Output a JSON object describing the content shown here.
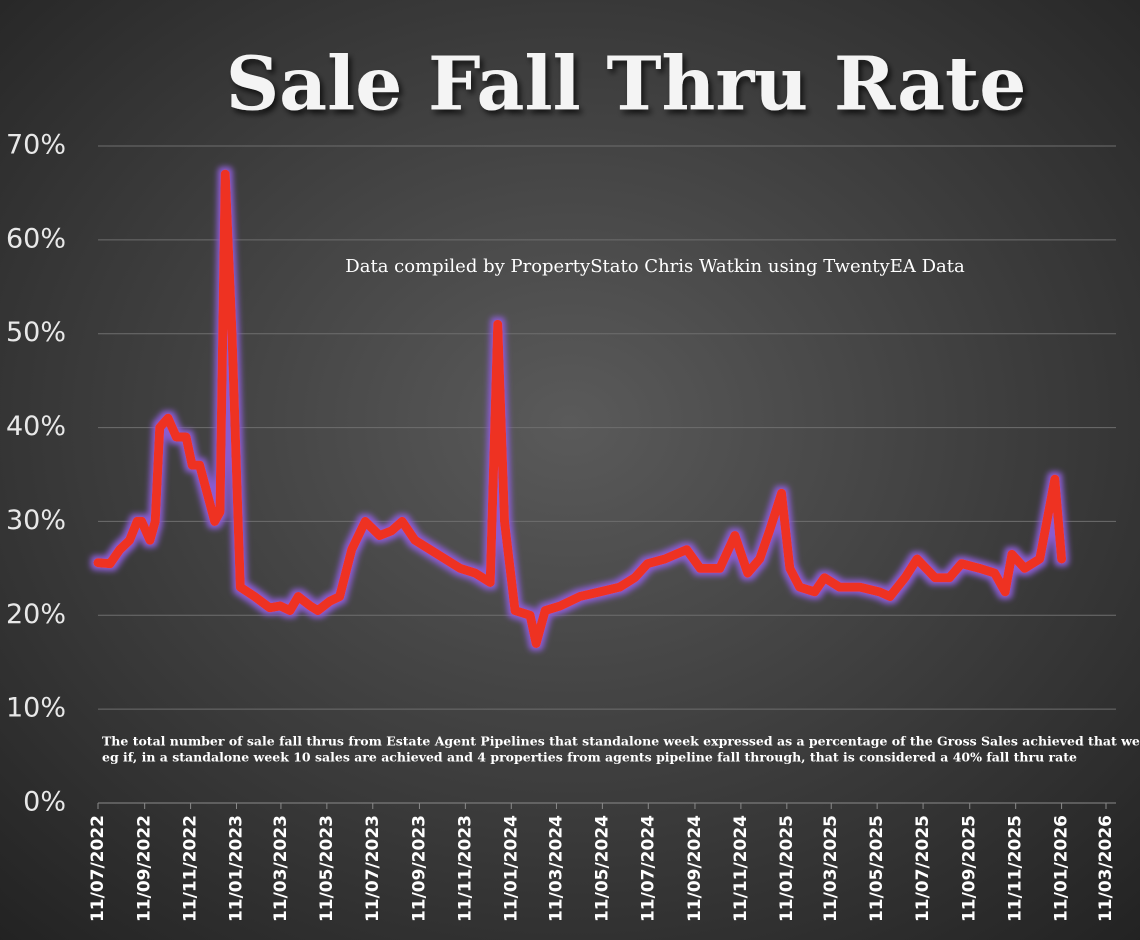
{
  "chart_data": {
    "type": "line",
    "title": "Sale Fall Thru Rate",
    "subtitle": "Data compiled by PropertyStato Chris Watkin using TwentyEA Data",
    "note": [
      "The total number of sale fall thrus from Estate Agent Pipelines that standalone week expressed as a percentage of the Gross Sales achieved that week.",
      " eg if, in a standalone week 10 sales are achieved and 4 properties from agents pipeline fall through, that is considered a 40%  fall thru rate"
    ],
    "x": [
      "2022-07-11",
      "2022-07-27",
      "2022-08-09",
      "2022-08-22",
      "2022-09-01",
      "2022-09-07",
      "2022-09-18",
      "2022-09-25",
      "2022-10-01",
      "2022-10-12",
      "2022-10-23",
      "2022-11-05",
      "2022-11-13",
      "2022-11-23",
      "2022-12-13",
      "2022-12-20",
      "2022-12-27",
      "2023-01-05",
      "2023-01-16",
      "2023-02-04",
      "2023-02-24",
      "2023-03-10",
      "2023-03-23",
      "2023-04-03",
      "2023-04-19",
      "2023-04-29",
      "2023-05-15",
      "2023-05-28",
      "2023-06-13",
      "2023-07-01",
      "2023-07-20",
      "2023-08-05",
      "2023-08-19",
      "2023-09-05",
      "2023-09-25",
      "2023-10-15",
      "2023-11-04",
      "2023-11-24",
      "2023-12-14",
      "2023-12-24",
      "2024-01-02",
      "2024-01-16",
      "2024-02-05",
      "2024-02-13",
      "2024-02-25",
      "2024-03-16",
      "2024-04-11",
      "2024-05-08",
      "2024-06-03",
      "2024-06-23",
      "2024-07-10",
      "2024-08-02",
      "2024-08-31",
      "2024-09-18",
      "2024-10-14",
      "2024-11-03",
      "2024-11-20",
      "2024-12-06",
      "2024-12-19",
      "2025-01-04",
      "2025-01-15",
      "2025-01-28",
      "2025-02-17",
      "2025-03-02",
      "2025-03-22",
      "2025-04-18",
      "2025-05-14",
      "2025-05-28",
      "2025-06-17",
      "2025-07-03",
      "2025-07-27",
      "2025-08-15",
      "2025-08-31",
      "2025-09-24",
      "2025-10-14",
      "2025-10-28",
      "2025-11-06",
      "2025-11-23",
      "2025-12-13",
      "2026-01-02",
      "2026-01-11"
    ],
    "series": [
      {
        "name": "Sale fall thru rate",
        "color": "#ee3124",
        "values": [
          25.6,
          25.5,
          27,
          28,
          30,
          30,
          28,
          30,
          40,
          41,
          39,
          39,
          36,
          36,
          30,
          31,
          67,
          50,
          23,
          22,
          20.8,
          21,
          20.5,
          22,
          21,
          20.5,
          21.5,
          22,
          27,
          30,
          28.5,
          29,
          30,
          28,
          27,
          26,
          25,
          24.5,
          23.5,
          51,
          30,
          20.5,
          20,
          17,
          20.5,
          21,
          22,
          22.5,
          23,
          24,
          25.5,
          26,
          27,
          25,
          25,
          28.5,
          24.5,
          26,
          29,
          33,
          25,
          23,
          22.5,
          24,
          23,
          23,
          22.5,
          22,
          24,
          26,
          24,
          24,
          25.5,
          25,
          24.5,
          22.5,
          26.5,
          25,
          26,
          34.5,
          26
        ]
      }
    ],
    "ylim": [
      0,
      70
    ],
    "yticks": [
      {
        "value": 0,
        "label": "0%"
      },
      {
        "value": 10,
        "label": "10%"
      },
      {
        "value": 20,
        "label": "20%"
      },
      {
        "value": 30,
        "label": "30%"
      },
      {
        "value": 40,
        "label": "40%"
      },
      {
        "value": 50,
        "label": "50%"
      },
      {
        "value": 60,
        "label": "60%"
      },
      {
        "value": 70,
        "label": "70%"
      }
    ],
    "xlim": [
      "2022-07-11",
      "2026-03-11"
    ],
    "xticks": [
      {
        "value": "2022-07-11",
        "label": "11/07/2022"
      },
      {
        "value": "2022-09-11",
        "label": "11/09/2022"
      },
      {
        "value": "2022-11-11",
        "label": "11/11/2022"
      },
      {
        "value": "2023-01-11",
        "label": "11/01/2023"
      },
      {
        "value": "2023-03-11",
        "label": "11/03/2023"
      },
      {
        "value": "2023-05-11",
        "label": "11/05/2023"
      },
      {
        "value": "2023-07-11",
        "label": "11/07/2023"
      },
      {
        "value": "2023-09-11",
        "label": "11/09/2023"
      },
      {
        "value": "2023-11-11",
        "label": "11/11/2023"
      },
      {
        "value": "2024-01-11",
        "label": "11/01/2024"
      },
      {
        "value": "2024-03-11",
        "label": "11/03/2024"
      },
      {
        "value": "2024-05-11",
        "label": "11/05/2024"
      },
      {
        "value": "2024-07-11",
        "label": "11/07/2024"
      },
      {
        "value": "2024-09-11",
        "label": "11/09/2024"
      },
      {
        "value": "2024-11-11",
        "label": "11/11/2024"
      },
      {
        "value": "2025-01-11",
        "label": "11/01/2025"
      },
      {
        "value": "2025-03-11",
        "label": "11/03/2025"
      },
      {
        "value": "2025-05-11",
        "label": "11/05/2025"
      },
      {
        "value": "2025-07-11",
        "label": "11/07/2025"
      },
      {
        "value": "2025-09-11",
        "label": "11/09/2025"
      },
      {
        "value": "2025-11-11",
        "label": "11/11/2025"
      },
      {
        "value": "2026-01-11",
        "label": "11/01/2026"
      },
      {
        "value": "2026-03-11",
        "label": "11/03/2026"
      }
    ],
    "grid": true
  }
}
